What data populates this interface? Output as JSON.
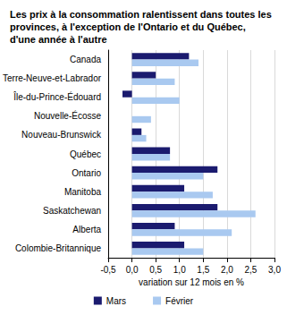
{
  "chart_data": {
    "type": "bar",
    "title": "Les prix à la consommation ralentissent dans toutes les provinces, à l'exception de l'Ontario et du Québec, d'une année à l'autre",
    "orientation": "horizontal",
    "categories": [
      "Canada",
      "Terre-Neuve-et-Labrador",
      "Île-du-Prince-Édouard",
      "Nouvelle-Écosse",
      "Nouveau-Brunswick",
      "Québec",
      "Ontario",
      "Manitoba",
      "Saskatchewan",
      "Alberta",
      "Colombie-Britannique"
    ],
    "series": [
      {
        "name": "Mars",
        "color": "#1b1b6f",
        "values": [
          1.2,
          0.5,
          -0.2,
          0.0,
          0.2,
          0.8,
          1.8,
          1.1,
          1.8,
          0.9,
          1.1
        ]
      },
      {
        "name": "Février",
        "color": "#a9c9f0",
        "values": [
          1.4,
          0.9,
          1.0,
          0.4,
          0.3,
          0.8,
          1.5,
          1.7,
          2.6,
          2.1,
          1.5
        ]
      }
    ],
    "xlabel": "variation sur 12 mois en %",
    "xlim": [
      -0.5,
      3.0
    ],
    "xticks": [
      {
        "value": -0.5,
        "label": "-0,5"
      },
      {
        "value": 0,
        "label": "0,0"
      },
      {
        "value": 0.5,
        "label": "0,5"
      },
      {
        "value": 1,
        "label": "1,0"
      },
      {
        "value": 1.5,
        "label": "1,5"
      },
      {
        "value": 2,
        "label": "2,0"
      },
      {
        "value": 2.5,
        "label": "2,5"
      },
      {
        "value": 3,
        "label": "3,0"
      }
    ],
    "grid": true,
    "legend": "bottom"
  }
}
